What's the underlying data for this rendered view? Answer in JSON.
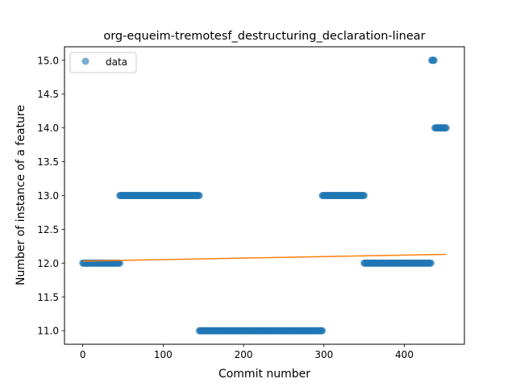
{
  "chart_data": {
    "type": "scatter",
    "title": "org-equeim-tremotesf_destructuring_declaration-linear",
    "xlabel": "Commit number",
    "ylabel": "Number of instance of a feature",
    "xlim": [
      -22.7,
      474.7
    ],
    "ylim": [
      10.8,
      15.2
    ],
    "x_ticks": [
      0,
      100,
      200,
      300,
      400
    ],
    "y_ticks": [
      11.0,
      11.5,
      12.0,
      12.5,
      13.0,
      13.5,
      14.0,
      14.5,
      15.0
    ],
    "grid": false,
    "legend": {
      "position": "top-left",
      "entries": [
        "data"
      ]
    },
    "colors": {
      "points": "#1f77b4",
      "fit": "#ff7f0e"
    },
    "series": [
      {
        "name": "data",
        "kind": "scatter",
        "segments": [
          {
            "x_start": 0,
            "x_end": 46,
            "y": 12
          },
          {
            "x_start": 46,
            "x_end": 145,
            "y": 13
          },
          {
            "x_start": 145,
            "x_end": 298,
            "y": 11
          },
          {
            "x_start": 298,
            "x_end": 350,
            "y": 13
          },
          {
            "x_start": 350,
            "x_end": 433,
            "y": 12
          },
          {
            "x_start": 434,
            "x_end": 437,
            "y": 15
          },
          {
            "x_start": 438,
            "x_end": 452,
            "y": 14
          }
        ]
      },
      {
        "kind": "line",
        "x": [
          0,
          452
        ],
        "y": [
          12.03,
          12.13
        ]
      }
    ]
  }
}
